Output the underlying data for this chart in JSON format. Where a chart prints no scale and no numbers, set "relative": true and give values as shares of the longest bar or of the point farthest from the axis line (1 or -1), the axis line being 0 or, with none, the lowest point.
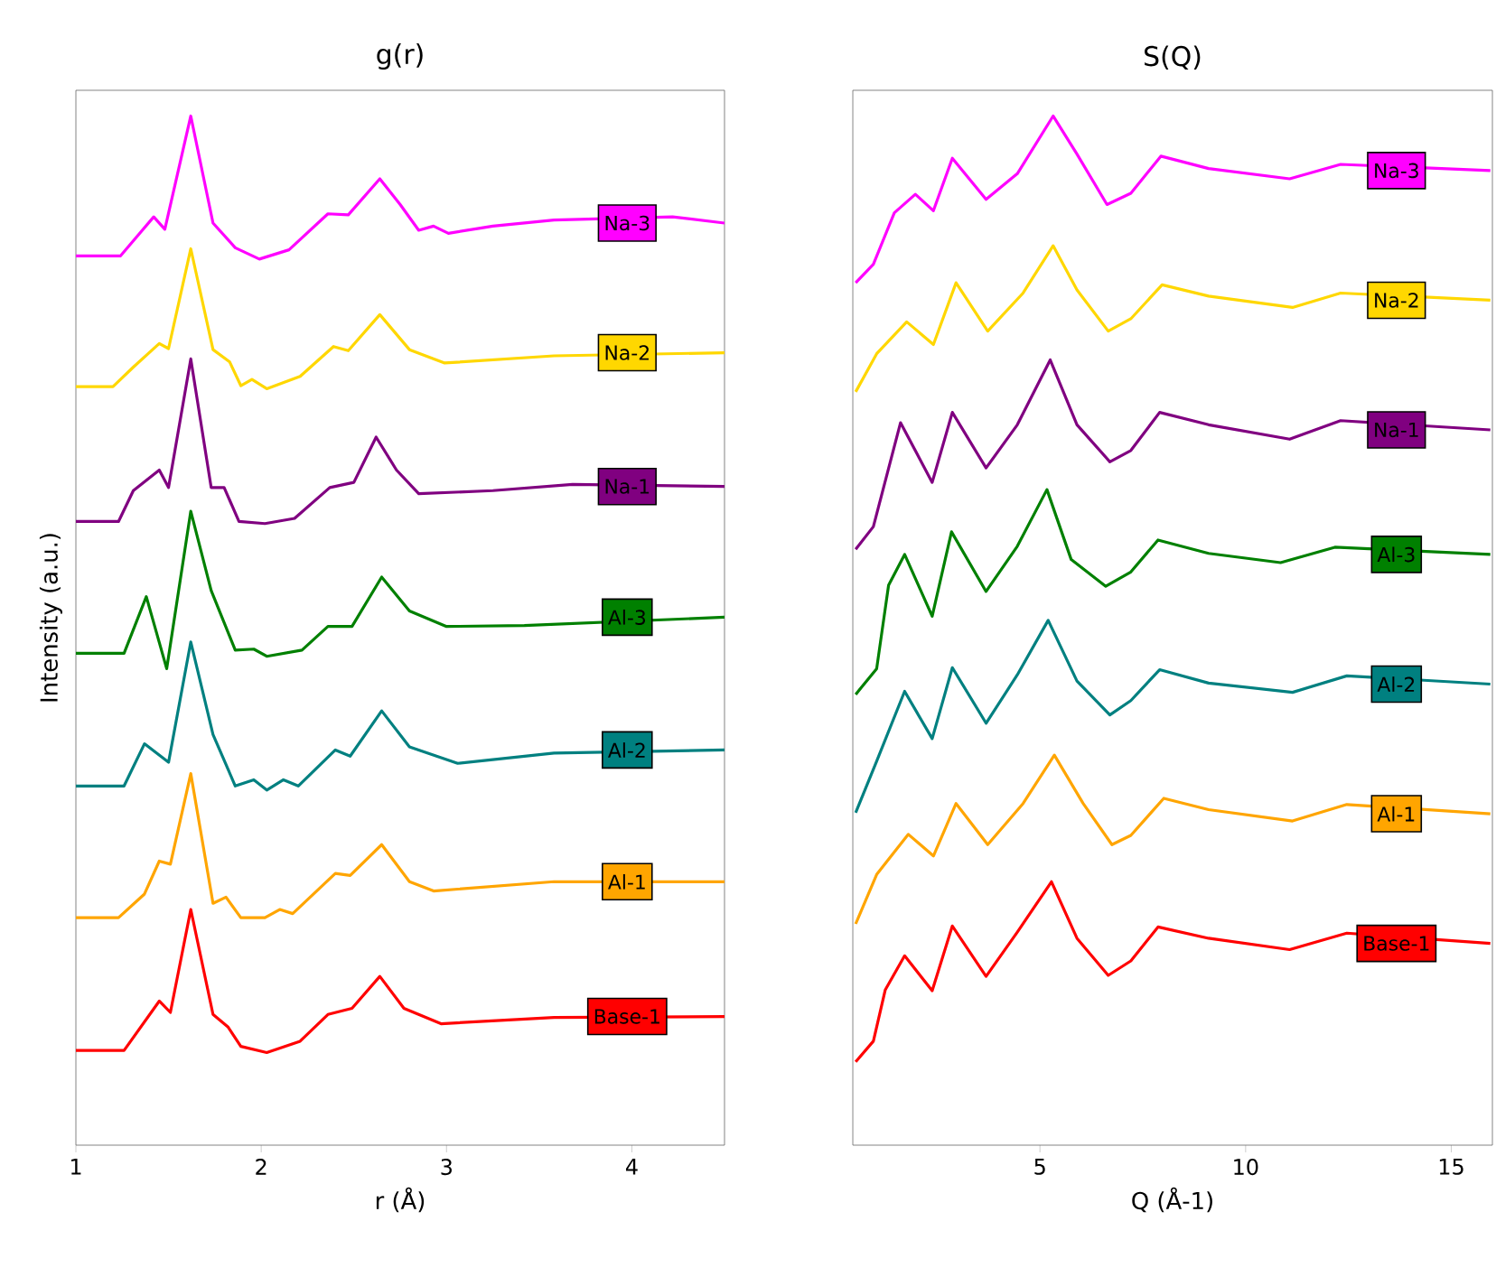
{
  "chart_data": [
    {
      "type": "line",
      "title": "g(r)",
      "xlabel": "r (Å)",
      "ylabel": "Intensity (a.u.)",
      "xlim": [
        1,
        4.5
      ],
      "xticks": [
        1,
        2,
        3,
        4
      ],
      "relative": true,
      "legend": false,
      "series": [
        {
          "name": "Na-3",
          "color": "#ff00ff",
          "x": [
            1.0,
            1.24,
            1.42,
            1.48,
            1.62,
            1.74,
            1.86,
            1.99,
            2.15,
            2.36,
            2.47,
            2.64,
            2.75,
            2.85,
            2.93,
            3.01,
            3.25,
            3.58,
            4.22,
            4.5
          ],
          "values": [
            0.864,
            0.864,
            0.902,
            0.89,
            1.0,
            0.896,
            0.872,
            0.861,
            0.87,
            0.905,
            0.904,
            0.939,
            0.914,
            0.889,
            0.893,
            0.886,
            0.893,
            0.899,
            0.902,
            0.896
          ]
        },
        {
          "name": "Na-2",
          "color": "#ffd700",
          "x": [
            1.0,
            1.2,
            1.31,
            1.45,
            1.5,
            1.62,
            1.74,
            1.83,
            1.89,
            1.95,
            2.03,
            2.21,
            2.39,
            2.47,
            2.64,
            2.8,
            2.99,
            3.58,
            4.5
          ],
          "values": [
            0.737,
            0.737,
            0.756,
            0.779,
            0.774,
            0.871,
            0.773,
            0.761,
            0.738,
            0.744,
            0.735,
            0.747,
            0.776,
            0.772,
            0.807,
            0.773,
            0.76,
            0.767,
            0.77
          ]
        },
        {
          "name": "Na-1",
          "color": "#800080",
          "x": [
            1.0,
            1.23,
            1.31,
            1.45,
            1.5,
            1.62,
            1.73,
            1.8,
            1.88,
            2.02,
            2.18,
            2.37,
            2.5,
            2.62,
            2.73,
            2.85,
            3.25,
            3.68,
            4.5
          ],
          "values": [
            0.606,
            0.606,
            0.636,
            0.656,
            0.639,
            0.764,
            0.639,
            0.639,
            0.606,
            0.604,
            0.609,
            0.639,
            0.644,
            0.688,
            0.656,
            0.633,
            0.636,
            0.642,
            0.64
          ]
        },
        {
          "name": "Al-3",
          "color": "#008000",
          "x": [
            1.0,
            1.26,
            1.38,
            1.49,
            1.62,
            1.73,
            1.86,
            1.96,
            2.03,
            2.22,
            2.36,
            2.49,
            2.65,
            2.8,
            3.0,
            3.42,
            4.5
          ],
          "values": [
            0.478,
            0.478,
            0.533,
            0.463,
            0.616,
            0.539,
            0.481,
            0.482,
            0.475,
            0.481,
            0.504,
            0.504,
            0.552,
            0.519,
            0.504,
            0.505,
            0.513
          ]
        },
        {
          "name": "Al-2",
          "color": "#008080",
          "x": [
            1.0,
            1.26,
            1.37,
            1.5,
            1.62,
            1.74,
            1.86,
            1.96,
            2.03,
            2.12,
            2.2,
            2.4,
            2.48,
            2.65,
            2.8,
            3.06,
            3.58,
            4.5
          ],
          "values": [
            0.349,
            0.349,
            0.39,
            0.372,
            0.489,
            0.399,
            0.349,
            0.355,
            0.345,
            0.355,
            0.349,
            0.384,
            0.378,
            0.422,
            0.387,
            0.371,
            0.381,
            0.384
          ]
        },
        {
          "name": "Al-1",
          "color": "#ffa500",
          "x": [
            1.0,
            1.23,
            1.37,
            1.45,
            1.51,
            1.62,
            1.74,
            1.81,
            1.89,
            2.02,
            2.1,
            2.17,
            2.4,
            2.48,
            2.65,
            2.8,
            2.93,
            3.58,
            4.5
          ],
          "values": [
            0.221,
            0.221,
            0.244,
            0.276,
            0.273,
            0.361,
            0.235,
            0.241,
            0.221,
            0.221,
            0.229,
            0.225,
            0.264,
            0.262,
            0.292,
            0.256,
            0.247,
            0.256,
            0.256
          ]
        },
        {
          "name": "Base-1",
          "color": "#ff0000",
          "x": [
            1.0,
            1.26,
            1.45,
            1.51,
            1.62,
            1.74,
            1.82,
            1.89,
            2.03,
            2.21,
            2.36,
            2.49,
            2.64,
            2.77,
            2.97,
            3.58,
            4.5
          ],
          "values": [
            0.092,
            0.092,
            0.14,
            0.129,
            0.229,
            0.127,
            0.115,
            0.096,
            0.09,
            0.101,
            0.127,
            0.133,
            0.164,
            0.133,
            0.118,
            0.124,
            0.125
          ]
        }
      ]
    },
    {
      "type": "line",
      "title": "S(Q)",
      "xlabel": "Q (Å-1)",
      "xlim": [
        0.45,
        16
      ],
      "xticks": [
        5,
        10,
        15
      ],
      "relative": true,
      "legend": false,
      "series": [
        {
          "name": "Na-3",
          "color": "#ff00ff",
          "x": [
            0.52,
            0.95,
            1.46,
            1.97,
            2.41,
            2.87,
            3.69,
            4.45,
            5.32,
            5.9,
            6.63,
            7.21,
            7.94,
            9.1,
            11.07,
            12.31,
            15.95
          ],
          "values": [
            0.838,
            0.856,
            0.906,
            0.924,
            0.908,
            0.959,
            0.919,
            0.944,
            1.0,
            0.963,
            0.914,
            0.925,
            0.961,
            0.949,
            0.939,
            0.953,
            0.947
          ]
        },
        {
          "name": "Na-2",
          "color": "#ffd700",
          "x": [
            0.52,
            1.03,
            1.76,
            2.41,
            2.96,
            3.73,
            4.59,
            5.32,
            5.9,
            6.66,
            7.21,
            7.97,
            9.1,
            11.14,
            12.31,
            15.95
          ],
          "values": [
            0.732,
            0.769,
            0.8,
            0.778,
            0.838,
            0.791,
            0.828,
            0.874,
            0.831,
            0.791,
            0.803,
            0.836,
            0.825,
            0.814,
            0.828,
            0.821
          ]
        },
        {
          "name": "Na-1",
          "color": "#800080",
          "x": [
            0.52,
            0.95,
            1.61,
            2.38,
            2.87,
            3.69,
            4.45,
            5.25,
            5.9,
            6.7,
            7.21,
            7.91,
            9.1,
            11.07,
            12.31,
            15.95
          ],
          "values": [
            0.579,
            0.601,
            0.702,
            0.644,
            0.712,
            0.658,
            0.7,
            0.763,
            0.7,
            0.664,
            0.675,
            0.712,
            0.7,
            0.686,
            0.704,
            0.695
          ]
        },
        {
          "name": "Al-3",
          "color": "#008000",
          "x": [
            0.52,
            1.03,
            1.32,
            1.71,
            2.38,
            2.85,
            3.69,
            4.45,
            5.17,
            5.76,
            6.6,
            7.21,
            7.87,
            9.1,
            10.85,
            12.17,
            15.95
          ],
          "values": [
            0.438,
            0.463,
            0.544,
            0.574,
            0.514,
            0.596,
            0.538,
            0.582,
            0.637,
            0.569,
            0.543,
            0.557,
            0.588,
            0.575,
            0.566,
            0.581,
            0.574
          ]
        },
        {
          "name": "Al-2",
          "color": "#008080",
          "x": [
            0.52,
            1.03,
            1.71,
            2.38,
            2.87,
            3.69,
            4.45,
            5.2,
            5.9,
            6.7,
            7.21,
            7.91,
            9.1,
            11.14,
            12.46,
            15.95
          ],
          "values": [
            0.323,
            0.373,
            0.441,
            0.395,
            0.464,
            0.41,
            0.457,
            0.51,
            0.451,
            0.418,
            0.432,
            0.462,
            0.449,
            0.44,
            0.456,
            0.448
          ]
        },
        {
          "name": "Al-1",
          "color": "#ffa500",
          "x": [
            0.52,
            1.03,
            1.8,
            2.41,
            2.96,
            3.73,
            4.59,
            5.35,
            6.05,
            6.75,
            7.21,
            8.01,
            9.1,
            11.14,
            12.46,
            15.95
          ],
          "values": [
            0.215,
            0.263,
            0.302,
            0.281,
            0.332,
            0.292,
            0.332,
            0.379,
            0.332,
            0.292,
            0.301,
            0.337,
            0.326,
            0.315,
            0.331,
            0.322
          ]
        },
        {
          "name": "Base-1",
          "color": "#ff0000",
          "x": [
            0.52,
            0.95,
            1.24,
            1.71,
            2.38,
            2.87,
            3.69,
            4.45,
            5.28,
            5.9,
            6.66,
            7.21,
            7.87,
            9.1,
            11.07,
            12.46,
            15.95
          ],
          "values": [
            0.081,
            0.101,
            0.151,
            0.184,
            0.15,
            0.213,
            0.164,
            0.207,
            0.256,
            0.201,
            0.165,
            0.179,
            0.212,
            0.201,
            0.19,
            0.206,
            0.196
          ]
        }
      ]
    }
  ]
}
